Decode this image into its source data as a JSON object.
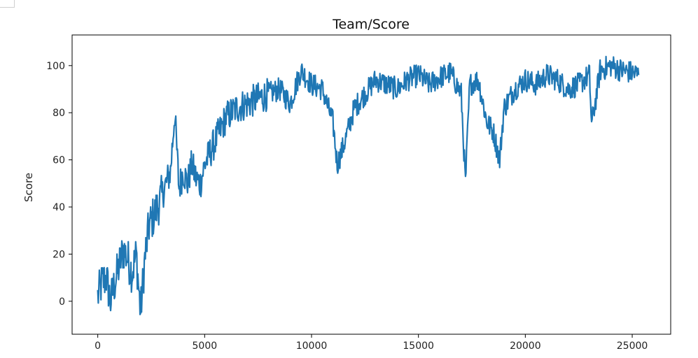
{
  "chart_data": {
    "type": "line",
    "title": "Team/Score",
    "xlabel": "",
    "ylabel": "Score",
    "xlim": [
      -1200,
      26800
    ],
    "ylim": [
      -14,
      113
    ],
    "xticks": [
      0,
      5000,
      10000,
      15000,
      20000,
      25000
    ],
    "xtick_labels": [
      "0",
      "5000",
      "10000",
      "15000",
      "20000",
      "25000"
    ],
    "yticks": [
      0,
      20,
      40,
      60,
      80,
      100
    ],
    "ytick_labels": [
      "0",
      "20",
      "40",
      "60",
      "80",
      "100"
    ],
    "grid": false,
    "legend": false,
    "line_color": "#1f77b4",
    "series": [
      {
        "x": [
          0,
          200,
          400,
          600,
          800,
          1000,
          1200,
          1400,
          1600,
          1800,
          2000,
          2200,
          2400,
          2600,
          2800,
          3000,
          3200,
          3400,
          3600,
          3800,
          4000,
          4200,
          4400,
          4600,
          4800,
          5000,
          5500,
          6000,
          6500,
          7000,
          7500,
          8000,
          8500,
          9000,
          9500,
          10000,
          10500,
          11000,
          11200,
          11500,
          12000,
          12500,
          13000,
          13500,
          14000,
          14500,
          15000,
          15500,
          16000,
          16500,
          17000,
          17200,
          17400,
          17800,
          18200,
          18500,
          18800,
          19000,
          19500,
          20000,
          20500,
          21000,
          21500,
          22000,
          22500,
          23000,
          23100,
          23300,
          23500,
          24000,
          24500,
          25000,
          25300
        ],
        "y": [
          2,
          8,
          10,
          0,
          8,
          15,
          22,
          18,
          12,
          20,
          -5,
          18,
          32,
          36,
          40,
          45,
          50,
          55,
          80,
          48,
          55,
          50,
          58,
          52,
          50,
          58,
          68,
          78,
          82,
          84,
          86,
          88,
          90,
          84,
          98,
          92,
          90,
          76,
          58,
          66,
          82,
          88,
          94,
          92,
          90,
          94,
          96,
          92,
          95,
          97,
          88,
          50,
          92,
          94,
          76,
          72,
          60,
          82,
          90,
          94,
          92,
          96,
          94,
          90,
          92,
          96,
          75,
          86,
          98,
          100,
          98,
          97,
          96
        ]
      }
    ]
  }
}
